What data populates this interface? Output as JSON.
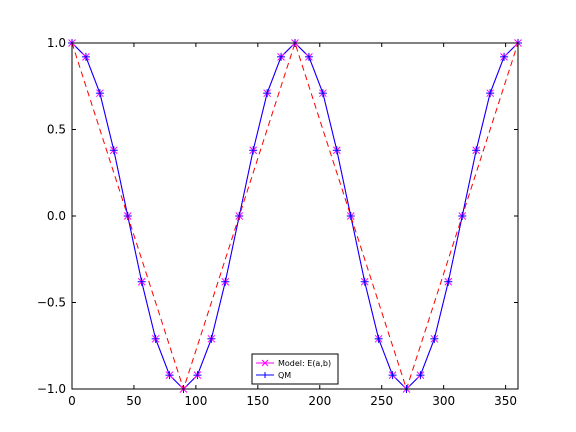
{
  "chart_data": {
    "type": "line",
    "title": "",
    "xlabel": "",
    "ylabel": "",
    "xlim": [
      0,
      360
    ],
    "ylim": [
      -1.0,
      1.0
    ],
    "xticks": [
      0,
      50,
      100,
      150,
      200,
      250,
      300,
      350
    ],
    "yticks": [
      -1.0,
      -0.5,
      0.0,
      0.5,
      1.0
    ],
    "ytick_labels": [
      "−1.0",
      "−0.5",
      "0.0",
      "0.5",
      "1.0"
    ],
    "grid": false,
    "legend_position": "lower-center",
    "series": [
      {
        "name": "Model: E(a,b)",
        "color": "#ff00ff",
        "marker": "x",
        "x": [
          0,
          11.25,
          22.5,
          33.75,
          45,
          56.25,
          67.5,
          78.75,
          90,
          101.25,
          112.5,
          123.75,
          135,
          146.25,
          157.5,
          168.75,
          180,
          191.25,
          202.5,
          213.75,
          225,
          236.25,
          247.5,
          258.75,
          270,
          281.25,
          292.5,
          303.75,
          315,
          326.25,
          337.5,
          348.75,
          360
        ],
        "values": [
          1.0,
          0.92,
          0.71,
          0.38,
          0.0,
          -0.38,
          -0.71,
          -0.92,
          -1.0,
          -0.92,
          -0.71,
          -0.38,
          0.0,
          0.38,
          0.71,
          0.92,
          1.0,
          0.92,
          0.71,
          0.38,
          0.0,
          -0.38,
          -0.71,
          -0.92,
          -1.0,
          -0.92,
          -0.71,
          -0.38,
          0.0,
          0.38,
          0.71,
          0.92,
          1.0
        ]
      },
      {
        "name": "QM",
        "color": "#0000ff",
        "marker": "+",
        "x": [
          0,
          11.25,
          22.5,
          33.75,
          45,
          56.25,
          67.5,
          78.75,
          90,
          101.25,
          112.5,
          123.75,
          135,
          146.25,
          157.5,
          168.75,
          180,
          191.25,
          202.5,
          213.75,
          225,
          236.25,
          247.5,
          258.75,
          270,
          281.25,
          292.5,
          303.75,
          315,
          326.25,
          337.5,
          348.75,
          360
        ],
        "values": [
          1.0,
          0.92,
          0.71,
          0.38,
          0.0,
          -0.38,
          -0.71,
          -0.92,
          -1.0,
          -0.92,
          -0.71,
          -0.38,
          0.0,
          0.38,
          0.71,
          0.92,
          1.0,
          0.92,
          0.71,
          0.38,
          0.0,
          -0.38,
          -0.71,
          -0.92,
          -1.0,
          -0.92,
          -0.71,
          -0.38,
          0.0,
          0.38,
          0.71,
          0.92,
          1.0
        ]
      },
      {
        "name": "",
        "color": "#ff0000",
        "style": "dashed",
        "x": [
          0,
          90,
          180,
          270,
          360
        ],
        "values": [
          1.0,
          -1.0,
          1.0,
          -1.0,
          1.0
        ]
      }
    ]
  }
}
